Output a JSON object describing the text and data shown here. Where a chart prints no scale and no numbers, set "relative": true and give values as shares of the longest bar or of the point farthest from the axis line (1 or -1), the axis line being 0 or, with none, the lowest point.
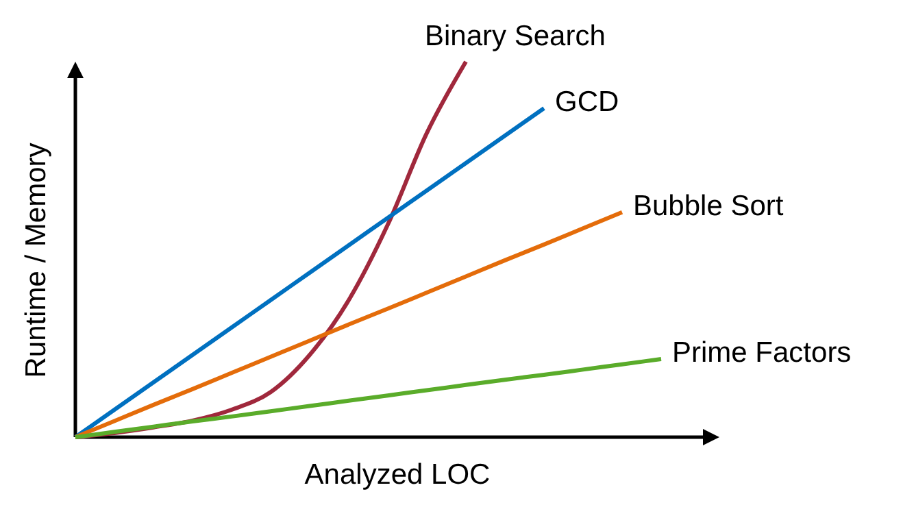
{
  "chart_data": {
    "type": "line",
    "relative": true,
    "xlabel": "Analyzed LOC",
    "ylabel": "Runtime / Memory",
    "marker": "none",
    "line_style": "solid",
    "categories": [
      null,
      null,
      null,
      null,
      null,
      null,
      null,
      null,
      null,
      null,
      null,
      null,
      null,
      null,
      null,
      null,
      null
    ],
    "series": [
      {
        "name": "Binary Search",
        "color": "#a0283c",
        "values": [
          0,
          0.011,
          0.026,
          0.044,
          0.073,
          0.12,
          0.219,
          0.365,
          0.566,
          0.81,
          1,
          null,
          null,
          null,
          null,
          null,
          null
        ]
      },
      {
        "name": "GCD",
        "color": "#0070c0",
        "values": [
          0,
          0.073,
          0.146,
          0.219,
          0.292,
          0.365,
          0.438,
          0.511,
          0.584,
          0.657,
          0.73,
          0.803,
          0.876,
          null,
          null,
          null,
          null
        ]
      },
      {
        "name": "Bubble Sort",
        "color": "#e46c0a",
        "values": [
          0,
          0.043,
          0.086,
          0.128,
          0.171,
          0.214,
          0.257,
          0.3,
          0.342,
          0.385,
          0.428,
          0.471,
          0.513,
          0.556,
          0.599,
          null,
          null
        ]
      },
      {
        "name": "Prime Factors",
        "color": "#5aac2a",
        "values": [
          0,
          0.014,
          0.028,
          0.042,
          0.055,
          0.069,
          0.083,
          0.097,
          0.111,
          0.125,
          0.139,
          0.153,
          0.166,
          0.18,
          0.194,
          0.208,
          null
        ]
      }
    ]
  }
}
